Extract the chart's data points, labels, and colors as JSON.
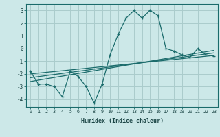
{
  "xlabel": "Humidex (Indice chaleur)",
  "background_color": "#cce8e8",
  "grid_color": "#aacccc",
  "line_color": "#1a6b6b",
  "x_data": [
    0,
    1,
    2,
    3,
    4,
    5,
    6,
    7,
    8,
    9,
    10,
    11,
    12,
    13,
    14,
    15,
    16,
    17,
    18,
    19,
    20,
    21,
    22,
    23
  ],
  "line1": [
    -1.8,
    -2.8,
    -2.8,
    -3.0,
    -3.8,
    -1.8,
    -2.2,
    -3.0,
    -4.3,
    -2.8,
    -0.5,
    1.1,
    2.4,
    3.0,
    2.4,
    3.0,
    2.6,
    0.0,
    -0.2,
    -0.5,
    -0.7,
    0.0,
    -0.5,
    -0.6
  ],
  "line2_x": [
    0,
    23
  ],
  "line2_y": [
    -2.0,
    -0.55
  ],
  "line3_x": [
    0,
    23
  ],
  "line3_y": [
    -2.3,
    -0.35
  ],
  "line4_x": [
    0,
    23
  ],
  "line4_y": [
    -2.6,
    -0.15
  ],
  "ylim": [
    -4.6,
    3.5
  ],
  "xlim": [
    -0.5,
    23.5
  ],
  "yticks": [
    -4,
    -3,
    -2,
    -1,
    0,
    1,
    2,
    3
  ],
  "xticks": [
    0,
    1,
    2,
    3,
    4,
    5,
    6,
    7,
    8,
    9,
    10,
    11,
    12,
    13,
    14,
    15,
    16,
    17,
    18,
    19,
    20,
    21,
    22,
    23
  ]
}
